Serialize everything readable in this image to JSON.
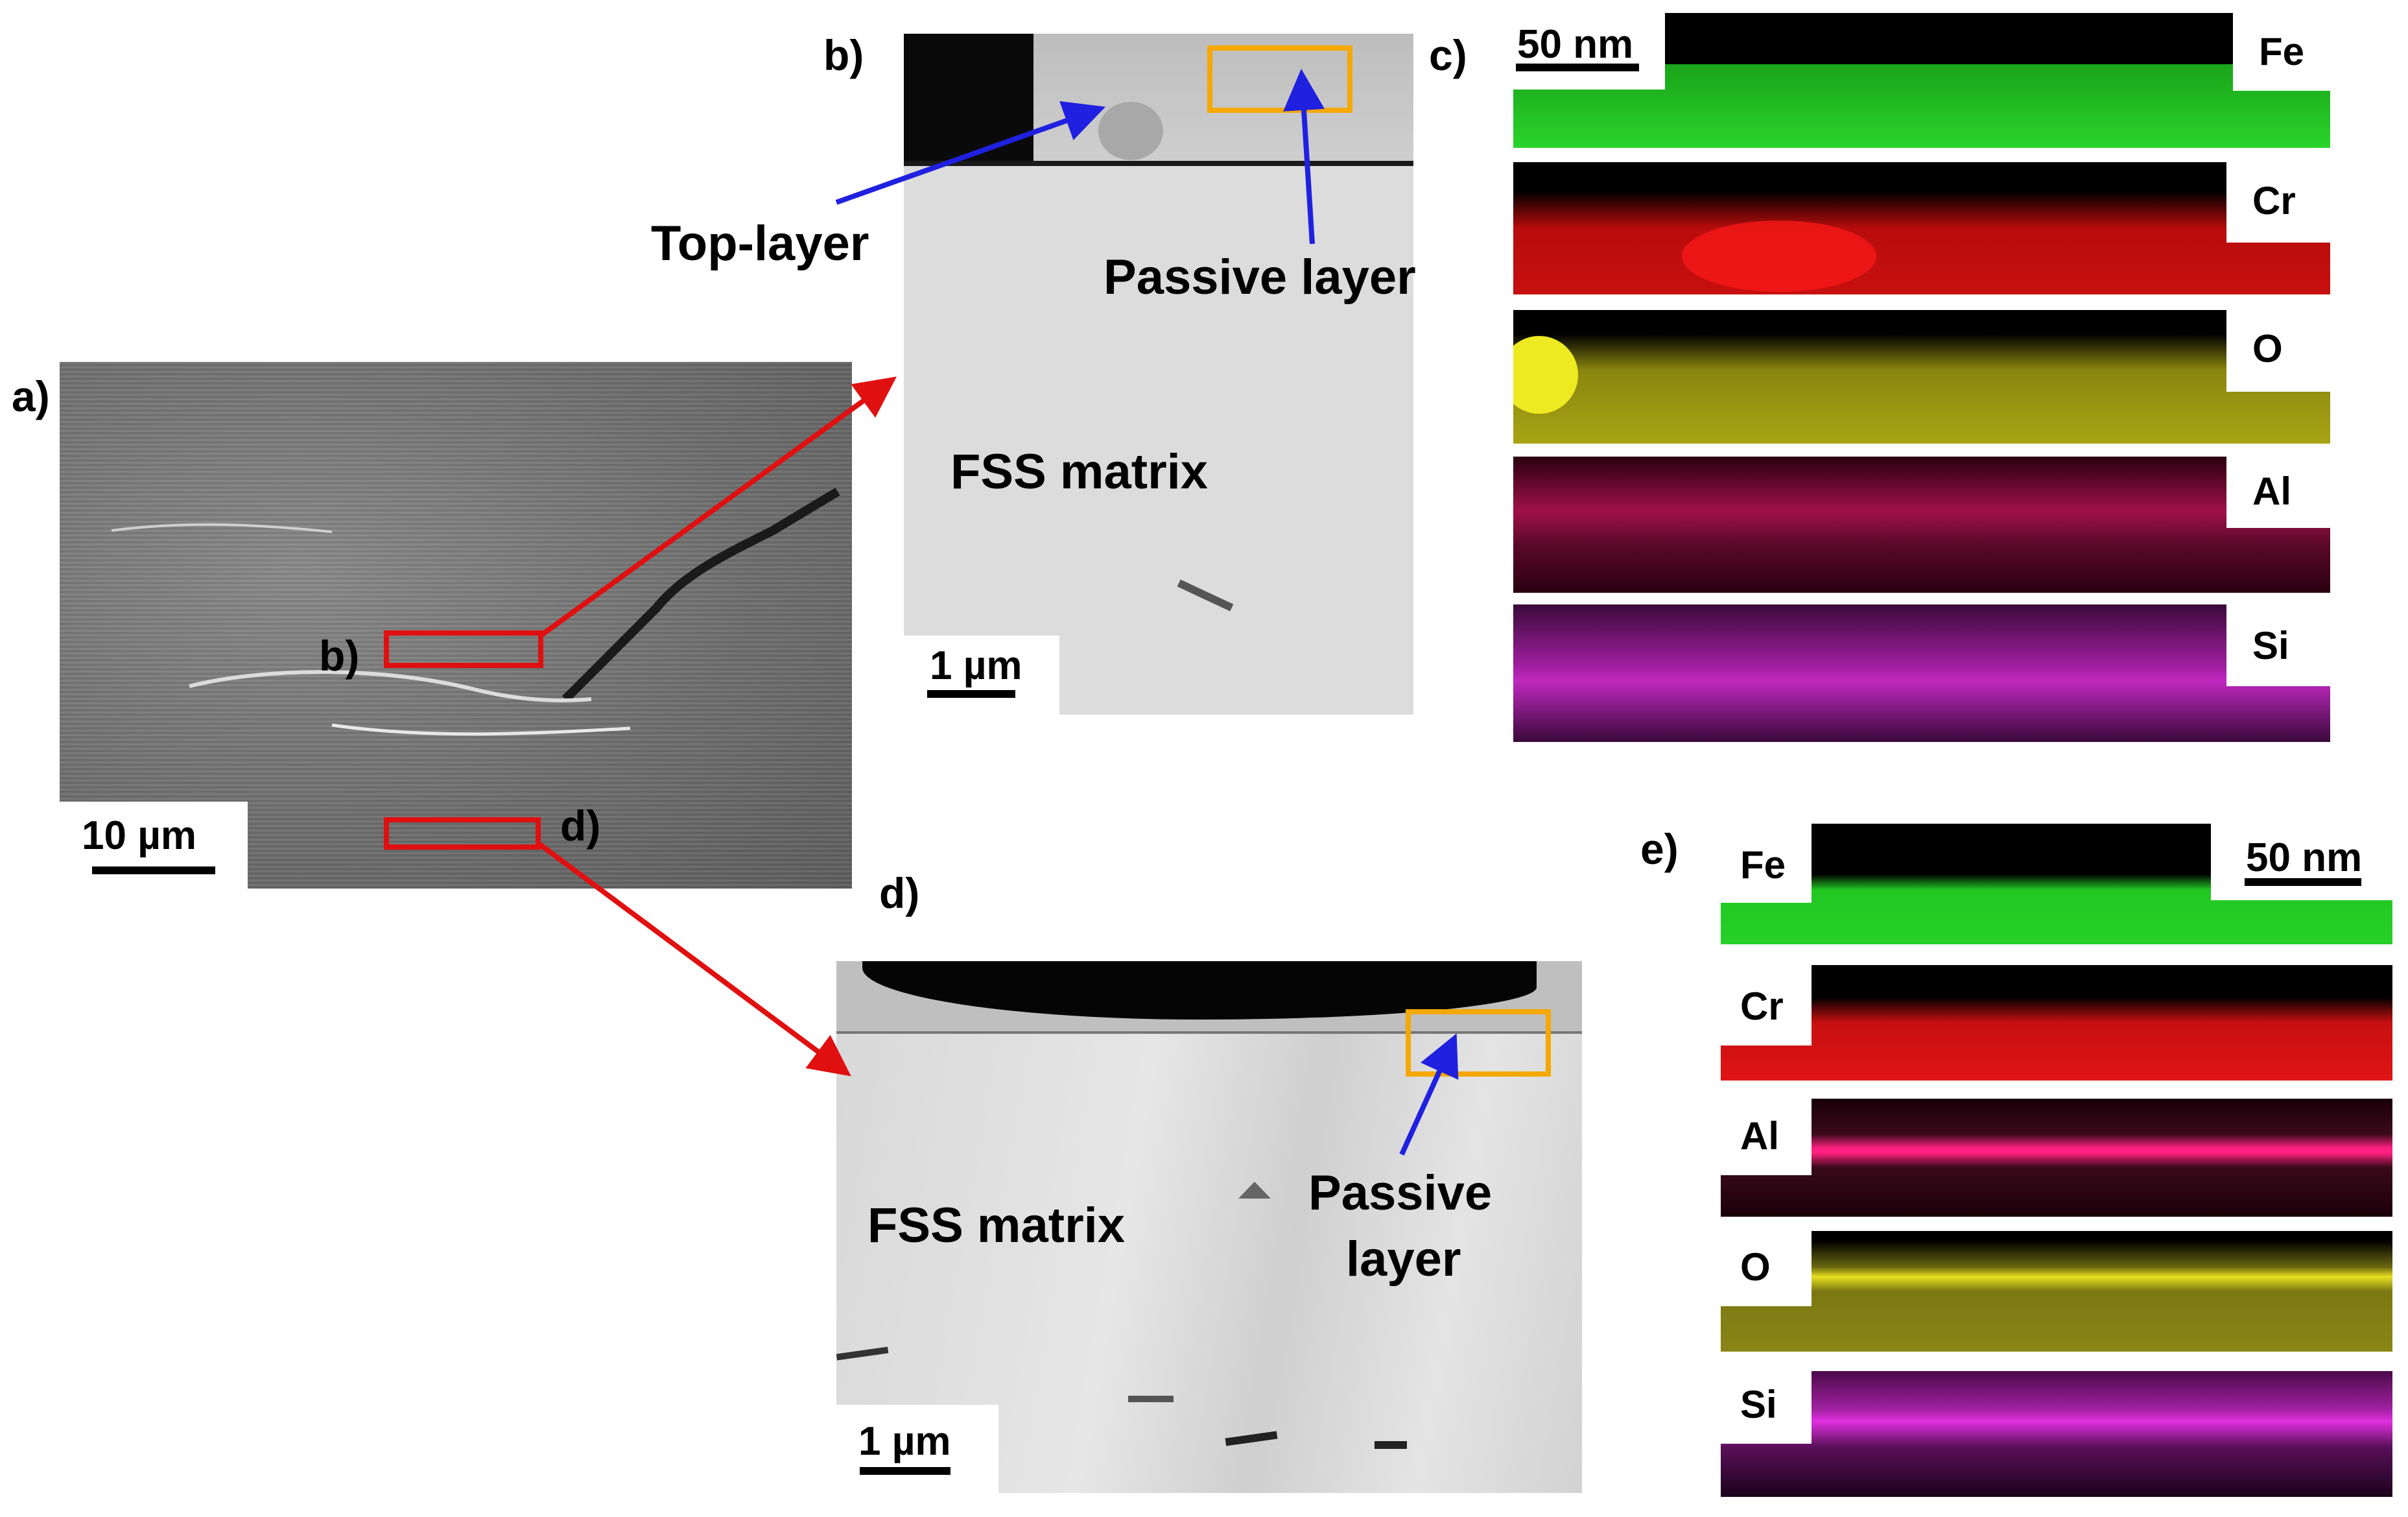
{
  "panels": {
    "a": {
      "label": "a)",
      "scale": "10 µm",
      "roi_b": "b)",
      "roi_d": "d)"
    },
    "b": {
      "label": "b)",
      "scale": "1 µm",
      "top_layer": "Top-layer",
      "passive_layer": "Passive layer",
      "matrix": "FSS matrix"
    },
    "c": {
      "label": "c)",
      "scale": "50 nm",
      "maps": [
        {
          "element": "Fe",
          "color": "#22d022"
        },
        {
          "element": "Cr",
          "color": "#e01010"
        },
        {
          "element": "O",
          "color": "#c8c418"
        },
        {
          "element": "Al",
          "color": "#e0206a"
        },
        {
          "element": "Si",
          "color": "#d028d0"
        }
      ]
    },
    "d": {
      "label": "d)",
      "scale": "1 µm",
      "matrix": "FSS matrix",
      "passive_line1": "Passive",
      "passive_line2": "layer"
    },
    "e": {
      "label": "e)",
      "scale": "50 nm",
      "maps": [
        {
          "element": "Fe",
          "color": "#22d022"
        },
        {
          "element": "Cr",
          "color": "#e01010"
        },
        {
          "element": "Al",
          "color": "#e0206a"
        },
        {
          "element": "O",
          "color": "#c8c418"
        },
        {
          "element": "Si",
          "color": "#d028d0"
        }
      ]
    }
  },
  "colors": {
    "roi_box": "#e01010",
    "roi_arrow": "#e01010",
    "highlight_box": "#f5a800",
    "pointer_arrow": "#2020e0"
  }
}
